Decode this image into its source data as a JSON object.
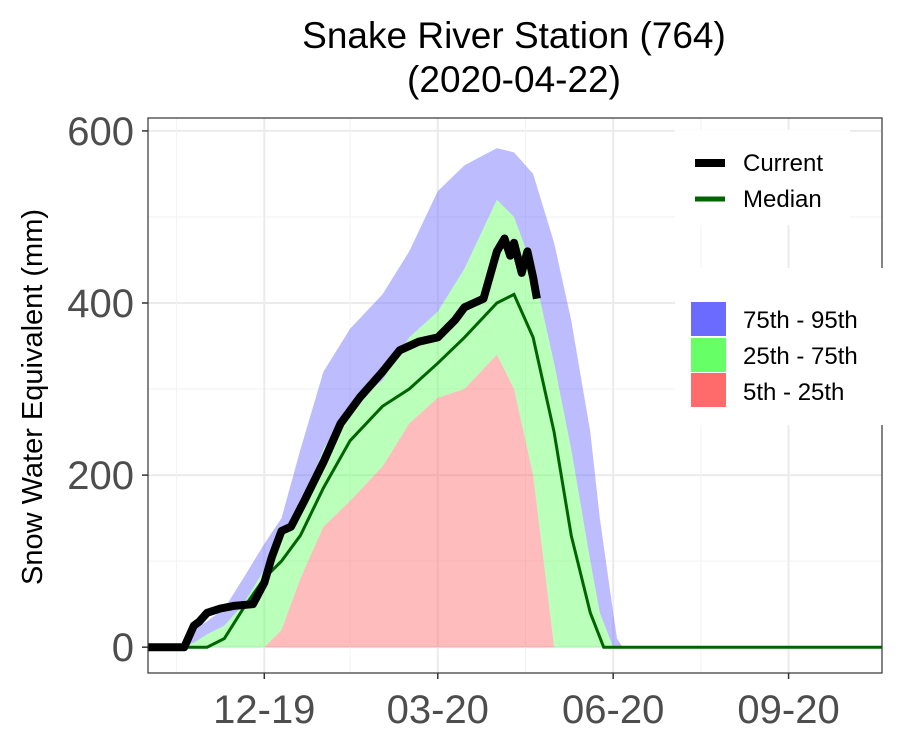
{
  "chart_data": {
    "type": "area",
    "title": "Snake River Station (764)",
    "subtitle": "(2020-04-22)",
    "xlabel": "",
    "ylabel": "Snow Water Equivalent (mm)",
    "x_ticks": [
      "12-19",
      "03-20",
      "06-20",
      "09-20"
    ],
    "x_tick_dates": [
      "2019-12-01",
      "2020-03-01",
      "2020-06-01",
      "2020-09-01"
    ],
    "xlim": [
      "2019-10-01",
      "2020-10-20"
    ],
    "ylim": [
      -30,
      615
    ],
    "y_ticks": [
      0,
      200,
      400,
      600
    ],
    "grid": true,
    "legend_position": "right",
    "colors": {
      "current": "#000000",
      "median": "#006400",
      "p75_95": "#6b6bff",
      "p25_75": "#66ff66",
      "p5_25": "#ff6b6b"
    },
    "legend": {
      "lines": [
        {
          "name": "Current",
          "color": "#000000"
        },
        {
          "name": "Median",
          "color": "#006400"
        }
      ],
      "bands": [
        {
          "name": "75th - 95th",
          "color": "#6b6bff"
        },
        {
          "name": "25th - 75th",
          "color": "#66ff66"
        },
        {
          "name": "5th - 25th",
          "color": "#ff6b6b"
        }
      ]
    },
    "bands": {
      "dates": [
        "2019-10-18",
        "2019-10-25",
        "2019-11-01",
        "2019-11-10",
        "2019-11-20",
        "2019-12-01",
        "2019-12-10",
        "2019-12-20",
        "2020-01-01",
        "2020-01-15",
        "2020-02-01",
        "2020-02-15",
        "2020-03-01",
        "2020-03-15",
        "2020-04-01",
        "2020-04-10",
        "2020-04-20",
        "2020-05-01",
        "2020-05-10",
        "2020-05-20",
        "2020-05-25",
        "2020-06-01",
        "2020-06-03",
        "2020-06-06"
      ],
      "p5": [
        0,
        0,
        0,
        0,
        0,
        0,
        0,
        0,
        0,
        0,
        0,
        0,
        0,
        0,
        0,
        0,
        0,
        0,
        0,
        0,
        0,
        0,
        0,
        0
      ],
      "p25": [
        0,
        0,
        0,
        0,
        0,
        0,
        20,
        80,
        140,
        170,
        210,
        260,
        290,
        300,
        340,
        300,
        200,
        0,
        0,
        0,
        0,
        0,
        0,
        0
      ],
      "p75": [
        0,
        5,
        15,
        25,
        50,
        90,
        130,
        160,
        230,
        280,
        310,
        360,
        390,
        440,
        520,
        500,
        440,
        330,
        230,
        100,
        40,
        0,
        0,
        0
      ],
      "p95": [
        0,
        20,
        30,
        45,
        80,
        120,
        150,
        230,
        320,
        370,
        410,
        460,
        530,
        560,
        580,
        575,
        550,
        470,
        380,
        250,
        150,
        40,
        10,
        0
      ]
    },
    "median": {
      "dates": [
        "2019-10-01",
        "2019-11-01",
        "2019-11-10",
        "2019-11-20",
        "2019-12-01",
        "2019-12-10",
        "2019-12-20",
        "2020-01-01",
        "2020-01-15",
        "2020-02-01",
        "2020-02-15",
        "2020-03-01",
        "2020-03-15",
        "2020-04-01",
        "2020-04-10",
        "2020-04-20",
        "2020-05-01",
        "2020-05-10",
        "2020-05-20",
        "2020-05-27",
        "2020-06-01",
        "2020-07-01",
        "2020-08-01",
        "2020-09-01",
        "2020-10-01",
        "2020-10-20"
      ],
      "values": [
        0,
        0,
        10,
        45,
        80,
        100,
        130,
        185,
        240,
        280,
        300,
        330,
        360,
        400,
        410,
        360,
        250,
        130,
        40,
        0,
        0,
        0,
        0,
        0,
        0,
        0
      ]
    },
    "current": {
      "dates": [
        "2019-10-01",
        "2019-10-20",
        "2019-10-25",
        "2019-10-28",
        "2019-11-01",
        "2019-11-08",
        "2019-11-15",
        "2019-11-25",
        "2019-12-01",
        "2019-12-05",
        "2019-12-10",
        "2019-12-15",
        "2019-12-22",
        "2020-01-01",
        "2020-01-10",
        "2020-01-20",
        "2020-02-01",
        "2020-02-10",
        "2020-02-20",
        "2020-03-01",
        "2020-03-10",
        "2020-03-15",
        "2020-03-20",
        "2020-03-25",
        "2020-04-01",
        "2020-04-05",
        "2020-04-08",
        "2020-04-10",
        "2020-04-14",
        "2020-04-17",
        "2020-04-20",
        "2020-04-22"
      ],
      "values": [
        0,
        0,
        25,
        30,
        40,
        45,
        48,
        50,
        75,
        105,
        135,
        140,
        170,
        215,
        260,
        290,
        320,
        345,
        355,
        360,
        380,
        395,
        400,
        405,
        460,
        475,
        455,
        470,
        435,
        460,
        430,
        405
      ]
    }
  }
}
